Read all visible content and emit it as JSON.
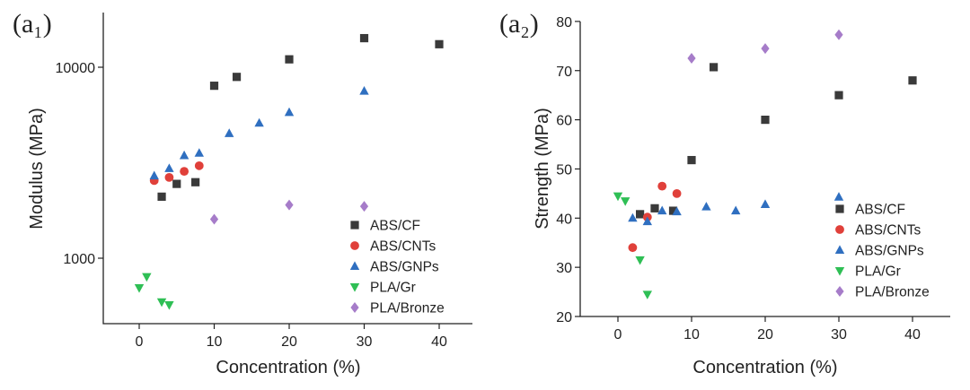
{
  "chart_data": [
    {
      "type": "scatter",
      "panel_label": "(a₁)",
      "xlabel": "Concentration (%)",
      "ylabel": "Modulus (MPa)",
      "yscale": "log",
      "xlim": [
        -5,
        45
      ],
      "ylim": [
        500,
        18000
      ],
      "xticks": [
        0,
        10,
        20,
        30,
        40
      ],
      "yticks": [
        1000,
        10000
      ],
      "ytick_labels": [
        "1000",
        "10000"
      ],
      "legend_position": "bottom-right",
      "series": [
        {
          "name": "ABS/CF",
          "marker": "square",
          "color": "#3a3a3a",
          "points": [
            [
              3,
              2100
            ],
            [
              5,
              2450
            ],
            [
              7.5,
              2500
            ],
            [
              10,
              8000
            ],
            [
              13,
              8900
            ],
            [
              20,
              11000
            ],
            [
              30,
              14200
            ],
            [
              40,
              13200
            ]
          ]
        },
        {
          "name": "ABS/CNTs",
          "marker": "circle",
          "color": "#e0403a",
          "points": [
            [
              2,
              2550
            ],
            [
              4,
              2650
            ],
            [
              6,
              2850
            ],
            [
              8,
              3050
            ]
          ]
        },
        {
          "name": "ABS/GNPs",
          "marker": "triangle-up",
          "color": "#2f6fc0",
          "points": [
            [
              2,
              2700
            ],
            [
              4,
              2950
            ],
            [
              6,
              3450
            ],
            [
              8,
              3550
            ],
            [
              12,
              4500
            ],
            [
              16,
              5100
            ],
            [
              20,
              5800
            ],
            [
              30,
              7500
            ]
          ]
        },
        {
          "name": "PLA/Gr",
          "marker": "triangle-down",
          "color": "#2fbf55",
          "points": [
            [
              0,
              700
            ],
            [
              1,
              800
            ],
            [
              3,
              590
            ],
            [
              4,
              570
            ]
          ]
        },
        {
          "name": "PLA/Bronze",
          "marker": "diamond",
          "color": "#a67cc9",
          "points": [
            [
              10,
              1600
            ],
            [
              20,
              1900
            ],
            [
              30,
              1870
            ]
          ]
        }
      ]
    },
    {
      "type": "scatter",
      "panel_label": "(a₂)",
      "xlabel": "Concentration (%)",
      "ylabel": "Strength (MPa)",
      "yscale": "linear",
      "xlim": [
        -5,
        45
      ],
      "ylim": [
        20,
        80
      ],
      "xticks": [
        0,
        10,
        20,
        30,
        40
      ],
      "yticks": [
        20,
        30,
        40,
        50,
        60,
        70,
        80
      ],
      "ytick_labels": [
        "20",
        "30",
        "40",
        "50",
        "60",
        "70",
        "80"
      ],
      "legend_position": "bottom-right",
      "series": [
        {
          "name": "ABS/CF",
          "marker": "square",
          "color": "#3a3a3a",
          "points": [
            [
              3,
              40.8
            ],
            [
              5,
              42
            ],
            [
              7.5,
              41.5
            ],
            [
              10,
              51.8
            ],
            [
              13,
              70.7
            ],
            [
              20,
              60
            ],
            [
              30,
              65
            ],
            [
              40,
              68
            ]
          ]
        },
        {
          "name": "ABS/CNTs",
          "marker": "circle",
          "color": "#e0403a",
          "points": [
            [
              2,
              34
            ],
            [
              4,
              40.2
            ],
            [
              6,
              46.5
            ],
            [
              8,
              45
            ]
          ]
        },
        {
          "name": "ABS/GNPs",
          "marker": "triangle-up",
          "color": "#2f6fc0",
          "points": [
            [
              2,
              40
            ],
            [
              4,
              39.3
            ],
            [
              6,
              41.5
            ],
            [
              8,
              41.3
            ],
            [
              12,
              42.3
            ],
            [
              16,
              41.5
            ],
            [
              20,
              42.8
            ],
            [
              30,
              44.3
            ]
          ]
        },
        {
          "name": "PLA/Gr",
          "marker": "triangle-down",
          "color": "#2fbf55",
          "points": [
            [
              0,
              44.5
            ],
            [
              1,
              43.5
            ],
            [
              3,
              31.5
            ],
            [
              4,
              24.5
            ]
          ]
        },
        {
          "name": "PLA/Bronze",
          "marker": "diamond",
          "color": "#a67cc9",
          "points": [
            [
              10,
              72.5
            ],
            [
              20,
              74.5
            ],
            [
              30,
              77.3
            ]
          ]
        }
      ]
    }
  ]
}
